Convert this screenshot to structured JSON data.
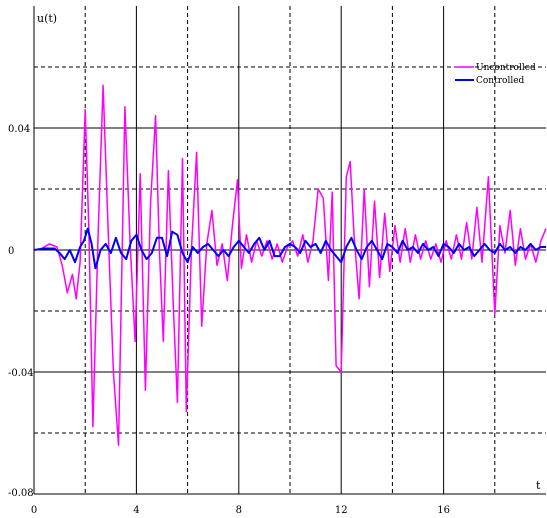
{
  "chart_data": {
    "type": "line",
    "title": "",
    "xlabel": "t",
    "ylabel": "u(t)",
    "xlim": [
      0,
      20
    ],
    "ylim": [
      -0.08,
      0.08
    ],
    "x_ticks": [
      0,
      4,
      8,
      12,
      16
    ],
    "x_tick_labels": [
      "0",
      "4",
      "8",
      "12",
      "16"
    ],
    "y_ticks": [
      -0.08,
      -0.04,
      0,
      0.04
    ],
    "y_tick_labels": [
      "-0.08",
      "-0.04",
      "0",
      "0.04"
    ],
    "grid": true,
    "grid_style": "solid lines at labeled ticks, dashed lines at intermediate ticks",
    "legend_position": "top-right",
    "series": [
      {
        "name": "Uncontrolled",
        "color": "#ff00ff",
        "x": [
          0,
          0.3,
          0.6,
          0.9,
          1.1,
          1.3,
          1.5,
          1.65,
          1.8,
          2.0,
          2.15,
          2.3,
          2.5,
          2.7,
          2.9,
          3.1,
          3.3,
          3.55,
          3.75,
          3.95,
          4.15,
          4.35,
          4.55,
          4.75,
          4.9,
          5.05,
          5.25,
          5.45,
          5.6,
          5.8,
          5.95,
          6.15,
          6.35,
          6.55,
          6.75,
          6.95,
          7.15,
          7.35,
          7.55,
          7.75,
          7.95,
          8.1,
          8.3,
          8.5,
          8.7,
          8.9,
          9.1,
          9.3,
          9.5,
          9.7,
          9.9,
          10.1,
          10.3,
          10.5,
          10.7,
          10.9,
          11.1,
          11.3,
          11.5,
          11.65,
          11.8,
          12.0,
          12.2,
          12.35,
          12.5,
          12.7,
          12.9,
          13.1,
          13.3,
          13.5,
          13.7,
          13.9,
          14.1,
          14.3,
          14.5,
          14.7,
          14.9,
          15.1,
          15.3,
          15.5,
          15.7,
          15.9,
          16.1,
          16.3,
          16.5,
          16.7,
          16.9,
          17.1,
          17.3,
          17.5,
          17.75,
          18.0,
          18.2,
          18.4,
          18.6,
          18.8,
          19.0,
          19.2,
          19.4,
          19.6,
          19.8,
          20.0
        ],
        "values": [
          0,
          0.0005,
          0.002,
          0.001,
          -0.005,
          -0.014,
          -0.008,
          -0.016,
          -0.004,
          0.046,
          0.005,
          -0.058,
          0.004,
          0.054,
          0.006,
          -0.04,
          -0.064,
          0.047,
          0.003,
          -0.03,
          0.025,
          -0.046,
          0.015,
          0.044,
          0.0,
          -0.03,
          0.026,
          -0.02,
          -0.05,
          0.03,
          -0.053,
          0.0,
          0.032,
          -0.025,
          0.002,
          0.013,
          -0.005,
          0.002,
          -0.01,
          0.008,
          0.023,
          -0.006,
          0.005,
          -0.004,
          0.003,
          -0.002,
          0.003,
          -0.003,
          0.002,
          -0.004,
          0.001,
          0.003,
          -0.002,
          0.005,
          -0.004,
          0.003,
          0.02,
          0.017,
          -0.01,
          0.019,
          -0.038,
          -0.04,
          0.024,
          0.029,
          0.005,
          -0.016,
          0.02,
          -0.012,
          0.016,
          -0.009,
          0.012,
          -0.007,
          0.008,
          -0.004,
          0.007,
          -0.004,
          0.005,
          -0.003,
          0.003,
          -0.003,
          0.002,
          -0.004,
          0.003,
          -0.003,
          0.005,
          -0.003,
          0.009,
          -0.003,
          0.014,
          -0.004,
          0.024,
          -0.021,
          0.008,
          -0.001,
          0.013,
          -0.005,
          0.007,
          -0.003,
          0.002,
          -0.004,
          0.003,
          0.007
        ]
      },
      {
        "name": "Controlled",
        "color": "#0000ff",
        "x": [
          0,
          0.4,
          0.8,
          1.0,
          1.2,
          1.4,
          1.6,
          1.8,
          1.95,
          2.1,
          2.25,
          2.4,
          2.6,
          2.8,
          3.0,
          3.2,
          3.4,
          3.6,
          3.8,
          4.0,
          4.2,
          4.4,
          4.6,
          4.8,
          5.0,
          5.2,
          5.4,
          5.6,
          5.8,
          6.0,
          6.2,
          6.4,
          6.6,
          6.8,
          7.0,
          7.2,
          7.4,
          7.6,
          7.8,
          8.0,
          8.2,
          8.4,
          8.6,
          8.8,
          9.0,
          9.2,
          9.4,
          9.6,
          9.8,
          10.0,
          10.2,
          10.4,
          10.6,
          10.8,
          11.0,
          11.2,
          11.4,
          11.6,
          11.8,
          12.0,
          12.2,
          12.4,
          12.6,
          12.8,
          13.0,
          13.2,
          13.4,
          13.6,
          13.8,
          14.0,
          14.2,
          14.4,
          14.6,
          14.8,
          15.0,
          15.2,
          15.4,
          15.6,
          15.8,
          16.0,
          16.2,
          16.4,
          16.6,
          16.8,
          17.0,
          17.2,
          17.4,
          17.6,
          17.8,
          18.0,
          18.2,
          18.4,
          18.6,
          18.8,
          19.0,
          19.2,
          19.4,
          19.6,
          19.8,
          20.0
        ],
        "values": [
          0,
          0.0005,
          0.0005,
          -0.001,
          -0.003,
          0.0,
          -0.004,
          0.001,
          0.003,
          0.007,
          0.002,
          -0.006,
          0.0,
          0.002,
          -0.001,
          0.004,
          -0.001,
          -0.003,
          0.003,
          0.005,
          0.0,
          -0.003,
          -0.001,
          0.004,
          0.004,
          -0.002,
          0.006,
          0.005,
          -0.001,
          -0.004,
          0.001,
          -0.001,
          0.001,
          0.002,
          0.0,
          -0.002,
          0.0,
          -0.002,
          0.001,
          0.003,
          0.001,
          -0.001,
          0.002,
          0.004,
          0.0,
          0.003,
          -0.002,
          -0.002,
          0.001,
          0.002,
          0.001,
          -0.001,
          0.003,
          0.001,
          0.002,
          -0.001,
          0.003,
          0.0,
          -0.002,
          -0.004,
          0.001,
          0.004,
          0.0,
          -0.003,
          0.001,
          0.003,
          0.0,
          -0.003,
          0.002,
          0.001,
          -0.001,
          0.003,
          0.0,
          0.001,
          -0.001,
          0.002,
          0.0,
          0.001,
          -0.002,
          0.002,
          0.001,
          -0.001,
          0.002,
          0.0,
          0.001,
          -0.002,
          0.0,
          0.002,
          0.0,
          -0.001,
          0.002,
          0.0,
          0.001,
          -0.001,
          0.001,
          0.0,
          0.002,
          0.0,
          0.001,
          0.001
        ]
      }
    ]
  }
}
